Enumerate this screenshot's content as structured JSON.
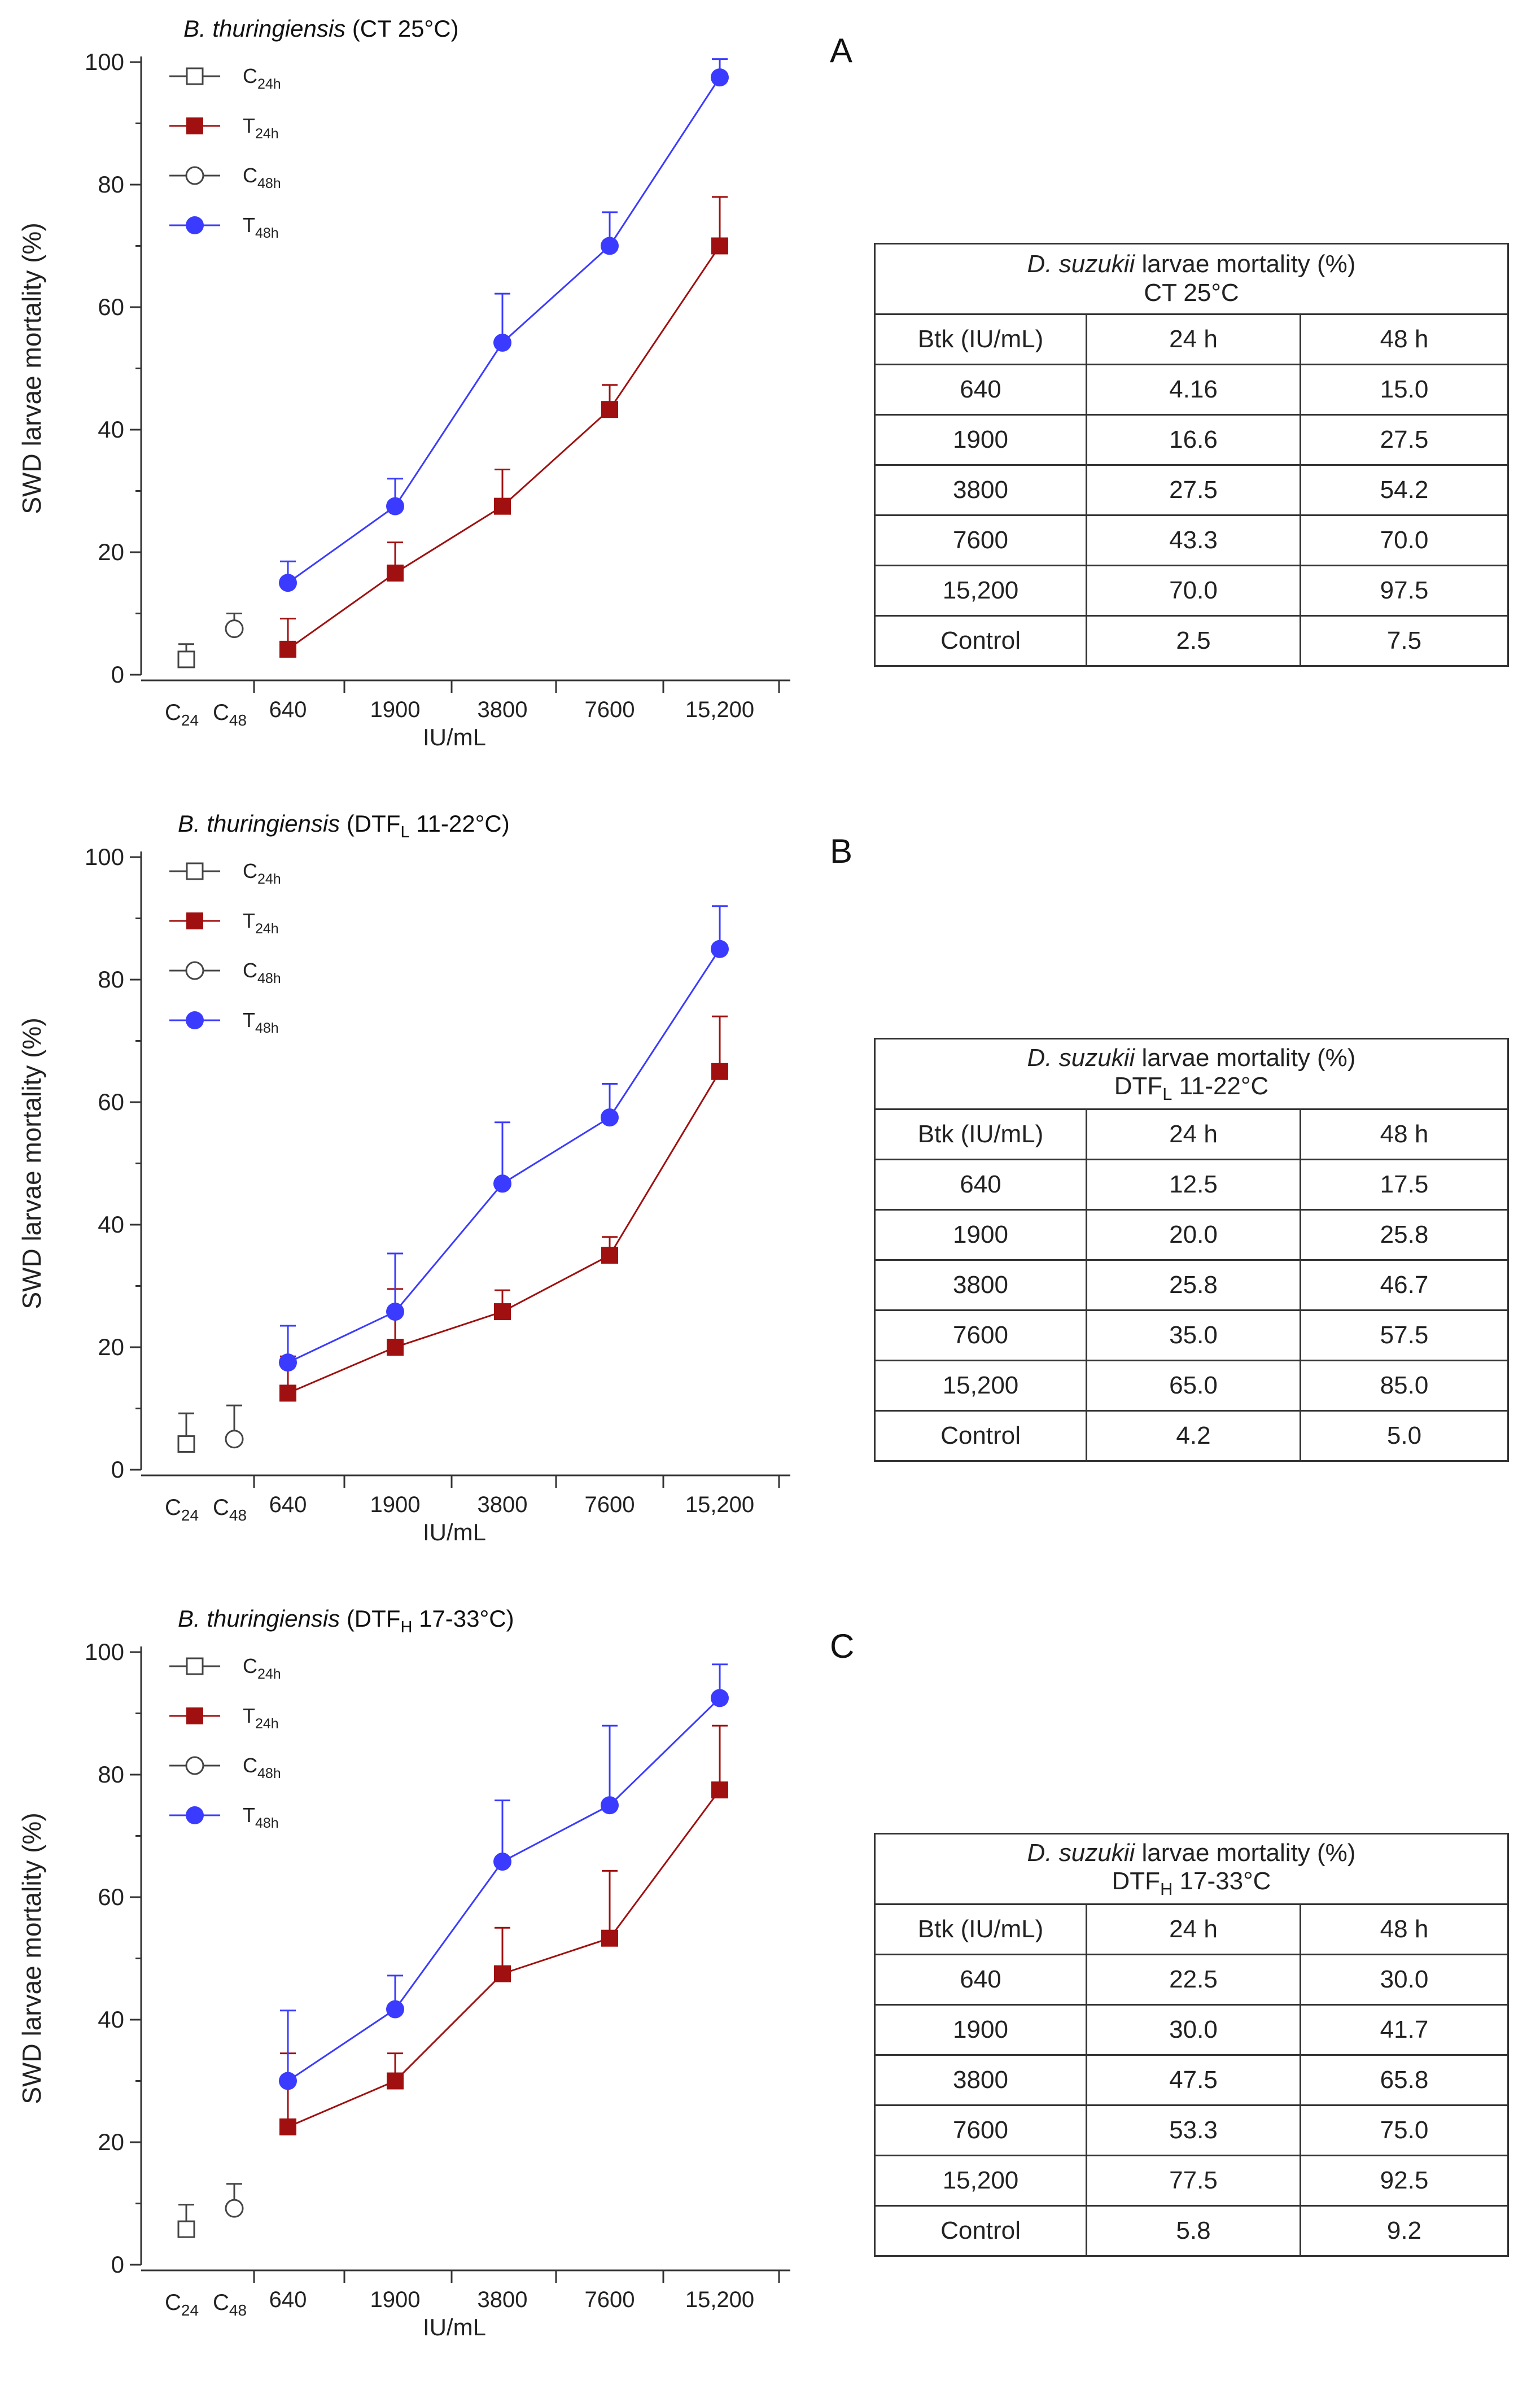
{
  "panels": [
    {
      "letter": "A",
      "title_italic": "B. thuringiensis",
      "title_pre": " (CT 25°C",
      "title_sub": "",
      "title_post": ")",
      "table_head_italic": "D. suzukii",
      "table_head_rest": " larvae mortality (%)",
      "table_cond_pre": "CT 25°C",
      "table_cond_sub": "",
      "table_cond_post": "",
      "columns": [
        "Btk (IU/mL)",
        "24 h",
        "48 h"
      ],
      "rows": [
        [
          "640",
          "4.16",
          "15.0"
        ],
        [
          "1900",
          "16.6",
          "27.5"
        ],
        [
          "3800",
          "27.5",
          "54.2"
        ],
        [
          "7600",
          "43.3",
          "70.0"
        ],
        [
          "15,200",
          "70.0",
          "97.5"
        ],
        [
          "Control",
          "2.5",
          "7.5"
        ]
      ]
    },
    {
      "letter": "B",
      "title_italic": "B. thuringiensis",
      "title_pre": " (DTF",
      "title_sub": "L",
      "title_post": " 11-22°C)",
      "table_head_italic": "D. suzukii",
      "table_head_rest": " larvae mortality (%)",
      "table_cond_pre": "DTF",
      "table_cond_sub": "L",
      "table_cond_post": " 11-22°C",
      "columns": [
        "Btk (IU/mL)",
        "24 h",
        "48 h"
      ],
      "rows": [
        [
          "640",
          "12.5",
          "17.5"
        ],
        [
          "1900",
          "20.0",
          "25.8"
        ],
        [
          "3800",
          "25.8",
          "46.7"
        ],
        [
          "7600",
          "35.0",
          "57.5"
        ],
        [
          "15,200",
          "65.0",
          "85.0"
        ],
        [
          "Control",
          "4.2",
          "5.0"
        ]
      ]
    },
    {
      "letter": "C",
      "title_italic": "B. thuringiensis",
      "title_pre": " (DTF",
      "title_sub": "H",
      "title_post": " 17-33°C)",
      "table_head_italic": "D. suzukii",
      "table_head_rest": " larvae mortality (%)",
      "table_cond_pre": "DTF",
      "table_cond_sub": "H",
      "table_cond_post": " 17-33°C",
      "columns": [
        "Btk (IU/mL)",
        "24 h",
        "48 h"
      ],
      "rows": [
        [
          "640",
          "22.5",
          "30.0"
        ],
        [
          "1900",
          "30.0",
          "41.7"
        ],
        [
          "3800",
          "47.5",
          "65.8"
        ],
        [
          "7600",
          "53.3",
          "75.0"
        ],
        [
          "15,200",
          "77.5",
          "92.5"
        ],
        [
          "Control",
          "5.8",
          "9.2"
        ]
      ]
    }
  ],
  "chart_data": [
    {
      "type": "line",
      "title": "B. thuringiensis (CT 25°C)",
      "xlabel": "IU/mL",
      "ylabel": "SWD larvae mortality (%)",
      "ylim": [
        0,
        100
      ],
      "yticks": [
        0,
        20,
        40,
        60,
        80,
        100
      ],
      "x_categories": [
        "C24",
        "C48",
        "640",
        "1900",
        "3800",
        "7600",
        "15,200"
      ],
      "legend": [
        "C24h",
        "T24h",
        "C48h",
        "T48h"
      ],
      "colors": {
        "T24h": "#a01010",
        "T48h": "#3b3bff",
        "control": "#444444"
      },
      "controls": [
        {
          "name": "C24h",
          "x": "C24",
          "value": 2.5,
          "err": 2.5
        },
        {
          "name": "C48h",
          "x": "C48",
          "value": 7.5,
          "err": 2.5
        }
      ],
      "series": [
        {
          "name": "T24h",
          "x": [
            "640",
            "1900",
            "3800",
            "7600",
            "15,200"
          ],
          "values": [
            4.16,
            16.6,
            27.5,
            43.3,
            70.0
          ],
          "err": [
            5.0,
            5.0,
            6.0,
            4.0,
            8.0
          ]
        },
        {
          "name": "T48h",
          "x": [
            "640",
            "1900",
            "3800",
            "7600",
            "15,200"
          ],
          "values": [
            15.0,
            27.5,
            54.2,
            70.0,
            97.5
          ],
          "err": [
            3.5,
            4.5,
            8.0,
            5.5,
            3.0
          ]
        }
      ]
    },
    {
      "type": "line",
      "title": "B. thuringiensis (DTFL 11-22°C)",
      "xlabel": "IU/mL",
      "ylabel": "SWD larvae mortality (%)",
      "ylim": [
        0,
        100
      ],
      "yticks": [
        0,
        20,
        40,
        60,
        80,
        100
      ],
      "x_categories": [
        "C24",
        "C48",
        "640",
        "1900",
        "3800",
        "7600",
        "15,200"
      ],
      "legend": [
        "C24h",
        "T24h",
        "C48h",
        "T48h"
      ],
      "colors": {
        "T24h": "#a01010",
        "T48h": "#3b3bff",
        "control": "#444444"
      },
      "controls": [
        {
          "name": "C24h",
          "x": "C24",
          "value": 4.2,
          "err": 5.0
        },
        {
          "name": "C48h",
          "x": "C48",
          "value": 5.0,
          "err": 5.5
        }
      ],
      "series": [
        {
          "name": "T24h",
          "x": [
            "640",
            "1900",
            "3800",
            "7600",
            "15,200"
          ],
          "values": [
            12.5,
            20.0,
            25.8,
            35.0,
            65.0
          ],
          "err": [
            6.0,
            9.5,
            3.5,
            3.0,
            9.0
          ]
        },
        {
          "name": "T48h",
          "x": [
            "640",
            "1900",
            "3800",
            "7600",
            "15,200"
          ],
          "values": [
            17.5,
            25.8,
            46.7,
            57.5,
            85.0
          ],
          "err": [
            6.0,
            9.5,
            10.0,
            5.5,
            7.0
          ]
        }
      ]
    },
    {
      "type": "line",
      "title": "B. thuringiensis (DTFH 17-33°C)",
      "xlabel": "IU/mL",
      "ylabel": "SWD larvae mortality (%)",
      "ylim": [
        0,
        100
      ],
      "yticks": [
        0,
        20,
        40,
        60,
        80,
        100
      ],
      "x_categories": [
        "C24",
        "C48",
        "640",
        "1900",
        "3800",
        "7600",
        "15,200"
      ],
      "legend": [
        "C24h",
        "T24h",
        "C48h",
        "T48h"
      ],
      "colors": {
        "T24h": "#a01010",
        "T48h": "#3b3bff",
        "control": "#444444"
      },
      "controls": [
        {
          "name": "C24h",
          "x": "C24",
          "value": 5.8,
          "err": 4.0
        },
        {
          "name": "C48h",
          "x": "C48",
          "value": 9.2,
          "err": 4.0
        }
      ],
      "series": [
        {
          "name": "T24h",
          "x": [
            "640",
            "1900",
            "3800",
            "7600",
            "15,200"
          ],
          "values": [
            22.5,
            30.0,
            47.5,
            53.3,
            77.5
          ],
          "err": [
            12.0,
            4.5,
            7.5,
            11.0,
            10.5
          ]
        },
        {
          "name": "T48h",
          "x": [
            "640",
            "1900",
            "3800",
            "7600",
            "15,200"
          ],
          "values": [
            30.0,
            41.7,
            65.8,
            75.0,
            92.5
          ],
          "err": [
            11.5,
            5.5,
            10.0,
            13.0,
            5.5
          ]
        }
      ]
    }
  ]
}
